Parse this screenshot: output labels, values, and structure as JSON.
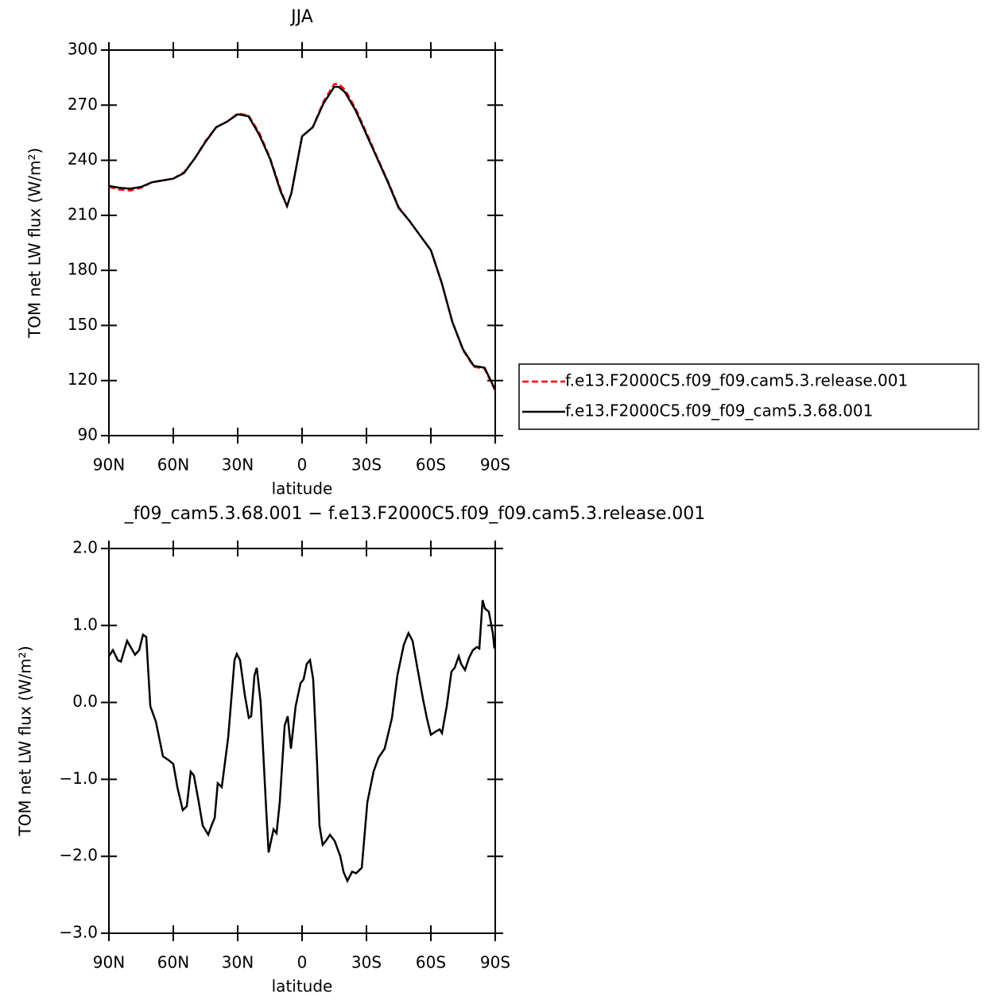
{
  "chart_data": [
    {
      "type": "line",
      "title": "JJA",
      "xlabel": "latitude",
      "ylabel": "TOM net LW flux (W/m²)",
      "x": [
        90,
        85,
        80,
        75,
        70,
        65,
        60,
        55,
        50,
        45,
        40,
        35,
        30,
        25,
        20,
        15,
        10,
        7,
        5,
        0,
        -5,
        -10,
        -15,
        -17,
        -20,
        -25,
        -30,
        -35,
        -40,
        -45,
        -50,
        -55,
        -60,
        -65,
        -70,
        -75,
        -80,
        -85,
        -90
      ],
      "series": [
        {
          "name": "f.e13.F2000C5.f09_f09.cam5.3.release.001",
          "color": "#ff0000",
          "line_style": "dashed",
          "values": [
            225.5,
            224,
            223.5,
            225,
            228,
            229,
            230,
            233.5,
            241,
            250.5,
            258,
            261,
            265.5,
            264.5,
            255,
            241.5,
            224,
            215,
            222,
            253,
            258,
            272,
            281.5,
            281.5,
            278.5,
            268,
            255,
            241.5,
            228.5,
            214.5,
            207,
            199,
            191,
            173.5,
            152,
            136.5,
            127.5,
            126.5,
            114.5
          ]
        },
        {
          "name": "f.e13.F2000C5.f09_f09_cam5.3.68.001",
          "color": "#000000",
          "line_style": "solid",
          "values": [
            226,
            225,
            224.5,
            225.5,
            228,
            229,
            230,
            233,
            241,
            250,
            258,
            261,
            265,
            264,
            254,
            241,
            223,
            215,
            222,
            253,
            258,
            271,
            280,
            280,
            277,
            267,
            254,
            241,
            228,
            214,
            207,
            199,
            191,
            173.5,
            152,
            137,
            128,
            127,
            115
          ]
        }
      ],
      "xlim": [
        90,
        -90
      ],
      "xticks": [
        {
          "value": 90,
          "label": "90N"
        },
        {
          "value": 60,
          "label": "60N"
        },
        {
          "value": 30,
          "label": "30N"
        },
        0,
        {
          "value": -30,
          "label": "30S"
        },
        {
          "value": -60,
          "label": "60S"
        },
        {
          "value": -90,
          "label": "90S"
        }
      ],
      "ylim": [
        90,
        300
      ],
      "yticks": [
        90,
        120,
        150,
        180,
        210,
        240,
        270,
        300
      ],
      "legend": "right"
    },
    {
      "type": "line",
      "title": "_f09_cam5.3.68.001 − f.e13.F2000C5.f09_f09.cam5.3.release.001",
      "xlabel": "latitude",
      "ylabel": "TOM net LW flux (W/m²)",
      "x": [
        90,
        88.1,
        85.9,
        84.4,
        81.5,
        77.8,
        75.9,
        74.1,
        72.6,
        70.7,
        68.1,
        64.8,
        62.2,
        60.0,
        58.1,
        55.6,
        53.7,
        51.9,
        50.4,
        48.1,
        46.3,
        43.7,
        42.2,
        40.7,
        39.3,
        37.4,
        34.4,
        31.5,
        30.4,
        28.9,
        26.7,
        24.8,
        23.7,
        22.2,
        21.1,
        19.3,
        16.7,
        15.6,
        13.3,
        11.9,
        10.4,
        8.1,
        6.7,
        5.2,
        3.0,
        0.7,
        -0.7,
        -2.2,
        -3.7,
        -5.2,
        -7.0,
        -8.1,
        -9.6,
        -11.1,
        -13.0,
        -15.2,
        -17.8,
        -19.3,
        -21.1,
        -23.3,
        -25.2,
        -27.8,
        -30.4,
        -33.3,
        -35.6,
        -38.5,
        -41.9,
        -44.4,
        -47.4,
        -49.6,
        -51.5,
        -53.7,
        -56.3,
        -58.1,
        -60.0,
        -62.2,
        -64.1,
        -65.2,
        -67.4,
        -69.6,
        -71.1,
        -73.0,
        -74.1,
        -75.9,
        -77.8,
        -79.6,
        -81.5,
        -82.6,
        -84.1,
        -85.2,
        -87.0,
        -88.9,
        -89.6
      ],
      "values": [
        0.6,
        0.68,
        0.55,
        0.53,
        0.8,
        0.62,
        0.68,
        0.88,
        0.85,
        -0.05,
        -0.25,
        -0.7,
        -0.75,
        -0.8,
        -1.1,
        -1.4,
        -1.35,
        -0.9,
        -0.95,
        -1.3,
        -1.6,
        -1.72,
        -1.6,
        -1.5,
        -1.05,
        -1.1,
        -0.45,
        0.55,
        0.63,
        0.55,
        0.1,
        -0.2,
        -0.18,
        0.35,
        0.45,
        0.0,
        -1.4,
        -1.95,
        -1.65,
        -1.7,
        -1.3,
        -0.3,
        -0.18,
        -0.6,
        -0.05,
        0.25,
        0.3,
        0.5,
        0.55,
        0.3,
        -0.8,
        -1.6,
        -1.85,
        -1.8,
        -1.72,
        -1.8,
        -2.0,
        -2.2,
        -2.32,
        -2.2,
        -2.22,
        -2.15,
        -1.3,
        -0.9,
        -0.72,
        -0.6,
        -0.2,
        0.35,
        0.75,
        0.9,
        0.8,
        0.45,
        0.05,
        -0.2,
        -0.42,
        -0.38,
        -0.35,
        -0.4,
        -0.05,
        0.4,
        0.45,
        0.6,
        0.5,
        0.42,
        0.58,
        0.68,
        0.72,
        0.7,
        1.33,
        1.22,
        1.18,
        0.9,
        0.7
      ],
      "color": "#000000",
      "xlim": [
        90,
        -90
      ],
      "xticks": [
        {
          "value": 90,
          "label": "90N"
        },
        {
          "value": 60,
          "label": "60N"
        },
        {
          "value": 30,
          "label": "30N"
        },
        0,
        {
          "value": -30,
          "label": "30S"
        },
        {
          "value": -60,
          "label": "60S"
        },
        {
          "value": -90,
          "label": "90S"
        }
      ],
      "ylim": [
        -3,
        2
      ],
      "yticks": [
        {
          "value": 2,
          "label": "2.0"
        },
        {
          "value": 1,
          "label": "1.0"
        },
        {
          "value": 0,
          "label": "0.0"
        },
        {
          "value": -1,
          "label": "−1.0"
        },
        {
          "value": -2,
          "label": "−2.0"
        },
        {
          "value": -3,
          "label": "−3.0"
        }
      ]
    }
  ]
}
